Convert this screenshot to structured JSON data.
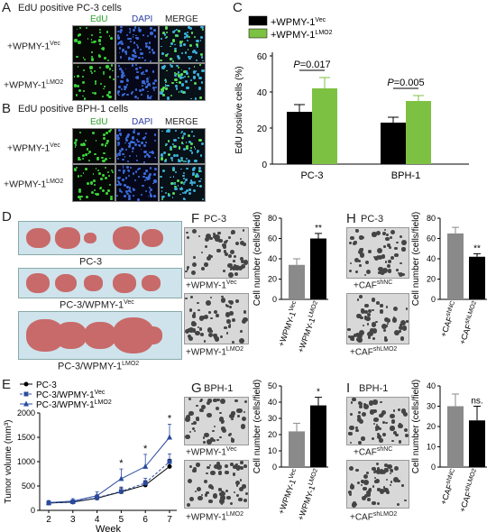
{
  "panels": {
    "A": {
      "letter": "A",
      "title": "EdU positive PC-3 cells",
      "channels": [
        "EdU",
        "DAPI",
        "MERGE"
      ],
      "channel_colors": [
        "#2aa02a",
        "#2a3aa0",
        "#222222"
      ],
      "rows": [
        {
          "prefix": "+WPMY-1",
          "sup": "Vec"
        },
        {
          "prefix": "+WPMY-1",
          "sup": "LMO2"
        }
      ]
    },
    "B": {
      "letter": "B",
      "title": "EdU positive BPH-1 cells",
      "channels": [
        "EdU",
        "DAPI",
        "MERGE"
      ],
      "rows": [
        {
          "prefix": "+WPMY-1",
          "sup": "Vec"
        },
        {
          "prefix": "+WPMY-1",
          "sup": "LMO2"
        }
      ]
    },
    "C": {
      "letter": "C"
    },
    "D": {
      "letter": "D",
      "labels": [
        {
          "prefix": "PC-3",
          "sup": ""
        },
        {
          "prefix": "PC-3/WPMY-1",
          "sup": "Vec"
        },
        {
          "prefix": "PC-3/WPMY-1",
          "sup": "LMO2"
        }
      ]
    },
    "E": {
      "letter": "E"
    },
    "F": {
      "letter": "F",
      "title": "PC-3",
      "img_labels": [
        {
          "prefix": "+WPMY-1",
          "sup": "Vec"
        },
        {
          "prefix": "+WPMY-1",
          "sup": "LMO2"
        }
      ]
    },
    "G": {
      "letter": "G",
      "title": "BPH-1",
      "img_labels": [
        {
          "prefix": "+WPMY-1",
          "sup": "Vec"
        },
        {
          "prefix": "+WPMY-1",
          "sup": "LMO2"
        }
      ]
    },
    "H": {
      "letter": "H",
      "title": "PC-3",
      "img_labels": [
        {
          "prefix": "+CAF",
          "sup": "shNC"
        },
        {
          "prefix": "+CAF",
          "sup": "shLMO2"
        }
      ]
    },
    "I": {
      "letter": "I",
      "title": "BPH-1",
      "img_labels": [
        {
          "prefix": "+CAF",
          "sup": "shNC"
        },
        {
          "prefix": "+CAF",
          "sup": "shLMO2"
        }
      ]
    }
  },
  "colors": {
    "black": "#000000",
    "green": "#7dc142",
    "gray": "#8a8a8a",
    "blue": "#2a4aa0",
    "line_gray": "#444444"
  },
  "chart_data": [
    {
      "panel": "C",
      "type": "bar",
      "categories": [
        "PC-3",
        "BPH-1"
      ],
      "series": [
        {
          "name_prefix": "+WPMY-1",
          "name_sup": "Vec",
          "values": [
            29,
            23
          ],
          "errors": [
            4,
            3
          ],
          "color": "#000000"
        },
        {
          "name_prefix": "+WPMY-1",
          "name_sup": "LMO2",
          "values": [
            42,
            35
          ],
          "errors": [
            6,
            3
          ],
          "color": "#7dc142"
        }
      ],
      "ylabel": "EdU positive cells (%)",
      "ylim": [
        0,
        60
      ],
      "yticks": [
        "0",
        "20",
        "40",
        "60"
      ],
      "annotations": [
        {
          "category": "PC-3",
          "text_italic": "P",
          "text_rest": "=0.017"
        },
        {
          "category": "BPH-1",
          "text_italic": "P",
          "text_rest": "=0.005"
        }
      ],
      "legend": "top-left"
    },
    {
      "panel": "E",
      "type": "line",
      "x": [
        2,
        3,
        4,
        5,
        6,
        7
      ],
      "xlabel": "Week",
      "xticks": [
        "2",
        "3",
        "4",
        "5",
        "6",
        "7"
      ],
      "ylabel": "Tumor volume (mm³)",
      "ylim": [
        0,
        2000
      ],
      "yticks": [
        "0",
        "500",
        "1000",
        "1500",
        "2000"
      ],
      "series": [
        {
          "name_prefix": "PC-3",
          "name_sup": "",
          "marker": "circle",
          "values": [
            150,
            170,
            250,
            380,
            520,
            900
          ],
          "errors": [
            40,
            40,
            60,
            80,
            90,
            150
          ]
        },
        {
          "name_prefix": "PC-3/WPMY-1",
          "name_sup": "Vec",
          "marker": "square",
          "values": [
            150,
            175,
            260,
            390,
            560,
            1000
          ],
          "errors": [
            40,
            40,
            60,
            90,
            100,
            160
          ]
        },
        {
          "name_prefix": "PC-3/WPMY-1",
          "name_sup": "LMO2",
          "marker": "triangle",
          "values": [
            160,
            190,
            300,
            650,
            900,
            1500
          ],
          "errors": [
            40,
            50,
            80,
            200,
            250,
            270
          ]
        }
      ],
      "significance": [
        {
          "x": 5,
          "text": "*"
        },
        {
          "x": 6,
          "text": "*"
        },
        {
          "x": 7,
          "text": "*"
        }
      ],
      "legend": "top-left"
    },
    {
      "panel": "F",
      "type": "bar",
      "categories": [
        {
          "prefix": "+WPMY-1",
          "sup": "Vec"
        },
        {
          "prefix": "+WPMY-1",
          "sup": "LMO2"
        }
      ],
      "values": [
        34,
        60
      ],
      "errors": [
        6,
        5
      ],
      "colors": [
        "#8a8a8a",
        "#000000"
      ],
      "ylabel": "Cell number (cells/field)",
      "ylim": [
        0,
        80
      ],
      "yticks": [
        "0",
        "20",
        "40",
        "60",
        "80"
      ],
      "significance": [
        {
          "index": 1,
          "text": "**"
        }
      ]
    },
    {
      "panel": "H",
      "type": "bar",
      "categories": [
        {
          "prefix": "+CAF",
          "sup": "shNC"
        },
        {
          "prefix": "+CAF",
          "sup": "shLMO2"
        }
      ],
      "values": [
        65,
        42
      ],
      "errors": [
        6,
        3
      ],
      "colors": [
        "#8a8a8a",
        "#000000"
      ],
      "ylabel": "Cell number (cells/field)",
      "ylim": [
        0,
        80
      ],
      "yticks": [
        "0",
        "20",
        "40",
        "60",
        "80"
      ],
      "significance": [
        {
          "index": 1,
          "text": "**"
        }
      ]
    },
    {
      "panel": "G",
      "type": "bar",
      "categories": [
        {
          "prefix": "+WPMY-1",
          "sup": "Vec"
        },
        {
          "prefix": "+WPMY-1",
          "sup": "LMO2"
        }
      ],
      "values": [
        22,
        38
      ],
      "errors": [
        5,
        5
      ],
      "colors": [
        "#8a8a8a",
        "#000000"
      ],
      "ylabel": "Cell number (cells/field)",
      "ylim": [
        0,
        50
      ],
      "yticks": [
        "0",
        "10",
        "20",
        "30",
        "40",
        "50"
      ],
      "significance": [
        {
          "index": 1,
          "text": "*"
        }
      ]
    },
    {
      "panel": "I",
      "type": "bar",
      "categories": [
        {
          "prefix": "+CAF",
          "sup": "shNC"
        },
        {
          "prefix": "+CAF",
          "sup": "shLMO2"
        }
      ],
      "values": [
        30,
        23
      ],
      "errors": [
        6,
        7
      ],
      "colors": [
        "#8a8a8a",
        "#000000"
      ],
      "ylabel": "Cell number (cells/field)",
      "ylim": [
        0,
        40
      ],
      "yticks": [
        "0",
        "10",
        "20",
        "30",
        "40"
      ],
      "significance": [
        {
          "index": 1,
          "text": "ns."
        }
      ]
    }
  ]
}
